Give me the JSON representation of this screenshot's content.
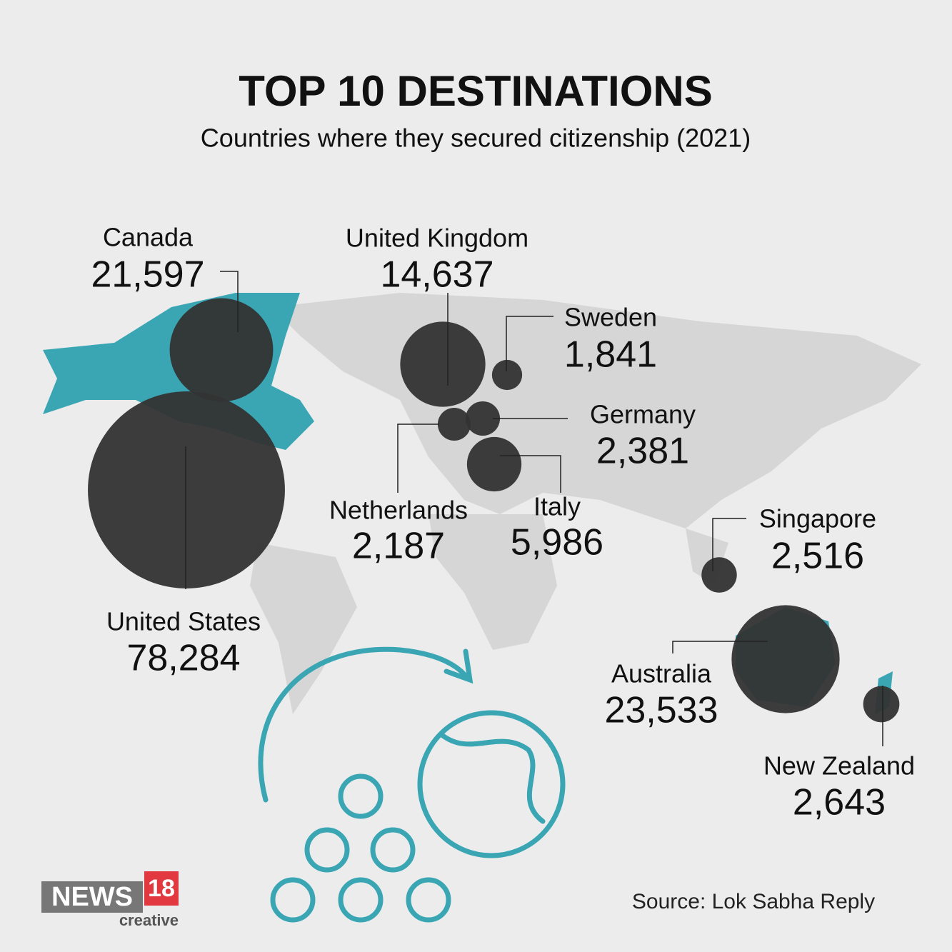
{
  "chart_data": {
    "type": "bubble_map",
    "title": "TOP 10 DESTINATIONS",
    "subtitle": "Countries where they secured citizenship (2021)",
    "categories": [
      "Canada",
      "United Kingdom",
      "Sweden",
      "Germany",
      "Netherlands",
      "Italy",
      "United States",
      "Singapore",
      "Australia",
      "New Zealand"
    ],
    "values": [
      21597,
      14637,
      1841,
      2381,
      2187,
      5986,
      78284,
      2516,
      23533,
      2643
    ],
    "value_labels": [
      "21,597",
      "14,637",
      "1,841",
      "2,381",
      "2,187",
      "5,986",
      "78,284",
      "2,516",
      "23,533",
      "2,643"
    ],
    "color": "#333333",
    "source": "Source: Lok Sabha Reply",
    "branding": {
      "name": "NEWS",
      "number": "18",
      "tag": "creative"
    }
  }
}
